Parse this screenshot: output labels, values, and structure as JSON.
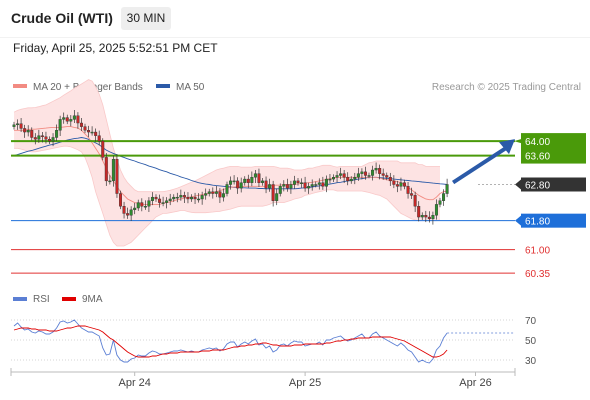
{
  "header": {
    "instrument": "Crude Oil (WTI)",
    "interval": "30 MIN",
    "datetime": "Friday, April 25, 2025 5:52:51 PM CET"
  },
  "legend": {
    "items": [
      {
        "label": "MA 20 + Bollinger Bands",
        "color": "#f28b82"
      },
      {
        "label": "MA 50",
        "color": "#2b5aa8"
      }
    ],
    "credit": "Research © 2025 Trading Central"
  },
  "rsi_legend": {
    "items": [
      {
        "label": "RSI",
        "color": "#5b7fd4"
      },
      {
        "label": "9MA",
        "color": "#e00000"
      }
    ]
  },
  "chart_data": {
    "type": "candlestick",
    "price_ylim": [
      59.8,
      65.8
    ],
    "x_ticks": [
      {
        "label": "Apr 24",
        "index": 34
      },
      {
        "label": "Apr 25",
        "index": 82
      },
      {
        "label": "Apr 26",
        "index": 130
      }
    ],
    "levels": [
      {
        "label": "64.00",
        "value": 64.0,
        "color": "#4a9a0a",
        "kind": "resistance"
      },
      {
        "label": "63.60",
        "value": 63.6,
        "color": "#4a9a0a",
        "kind": "resistance"
      },
      {
        "label": "62.80",
        "value": 62.8,
        "color": "#333333",
        "kind": "current"
      },
      {
        "label": "61.80",
        "value": 61.8,
        "color": "#1e6fd9",
        "kind": "pivot"
      },
      {
        "label": "61.00",
        "value": 61.0,
        "color": "#e03030",
        "kind": "support"
      },
      {
        "label": "60.35",
        "value": 60.35,
        "color": "#e03030",
        "kind": "support"
      }
    ],
    "close": [
      64.45,
      64.48,
      64.35,
      64.25,
      64.3,
      64.1,
      64.05,
      64.15,
      64.12,
      64.05,
      64.0,
      64.1,
      64.3,
      64.6,
      64.65,
      64.55,
      64.6,
      64.7,
      64.5,
      64.4,
      64.3,
      64.25,
      64.25,
      64.15,
      64.0,
      63.55,
      62.9,
      62.9,
      63.5,
      62.55,
      62.2,
      62.0,
      61.95,
      62.1,
      62.15,
      62.3,
      62.2,
      62.2,
      62.35,
      62.45,
      62.4,
      62.3,
      62.3,
      62.35,
      62.4,
      62.45,
      62.45,
      62.5,
      62.45,
      62.4,
      62.45,
      62.4,
      62.4,
      62.5,
      62.55,
      62.6,
      62.55,
      62.6,
      62.45,
      62.55,
      62.8,
      62.9,
      62.9,
      62.7,
      62.85,
      62.95,
      62.85,
      63.0,
      63.1,
      62.85,
      62.9,
      62.7,
      62.8,
      62.35,
      62.55,
      62.75,
      62.8,
      62.7,
      62.8,
      62.9,
      62.85,
      62.85,
      62.7,
      62.75,
      62.8,
      62.8,
      62.85,
      62.75,
      62.95,
      62.95,
      63.0,
      63.05,
      63.1,
      63.0,
      62.9,
      62.95,
      63.0,
      63.1,
      63.15,
      63.05,
      63.05,
      63.2,
      63.25,
      63.1,
      63.05,
      63.0,
      62.9,
      62.8,
      62.75,
      62.85,
      62.75,
      62.55,
      62.5,
      62.2,
      61.9,
      61.95,
      61.9,
      61.85,
      61.95,
      62.25,
      62.35,
      62.55,
      62.8
    ],
    "bollinger": {
      "upper": [
        64.8,
        64.85,
        64.88,
        64.9,
        64.92,
        64.92,
        64.93,
        64.95,
        64.98,
        65.0,
        65.05,
        65.1,
        65.15,
        65.2,
        65.27,
        65.33,
        65.39,
        65.46,
        65.52,
        65.58,
        65.64,
        65.7,
        65.66,
        65.5,
        65.3,
        65.0,
        64.6,
        64.2,
        63.8,
        63.5,
        63.2,
        63.0,
        62.85,
        62.75,
        62.65,
        62.6,
        62.6,
        62.6,
        62.6,
        62.6,
        62.6,
        62.6,
        62.6,
        62.62,
        62.64,
        62.67,
        62.7,
        62.74,
        62.78,
        62.82,
        62.86,
        62.9,
        62.95,
        63.0,
        63.05,
        63.1,
        63.15,
        63.2,
        63.23,
        63.25,
        63.28,
        63.3,
        63.3,
        63.3,
        63.28,
        63.28,
        63.28,
        63.28,
        63.3,
        63.3,
        63.3,
        63.3,
        63.3,
        63.3,
        63.28,
        63.25,
        63.25,
        63.25,
        63.23,
        63.2,
        63.2,
        63.2,
        63.22,
        63.25,
        63.25,
        63.28,
        63.3,
        63.33,
        63.33,
        63.33,
        63.3,
        63.28,
        63.3,
        63.3,
        63.3,
        63.3,
        63.3,
        63.3,
        63.3,
        63.35,
        63.4,
        63.42,
        63.45,
        63.45,
        63.45,
        63.45,
        63.45,
        63.45,
        63.45,
        63.4,
        63.4,
        63.4,
        63.4,
        63.4,
        63.35,
        63.35,
        63.3,
        63.3,
        63.3,
        63.3,
        63.3
      ],
      "lower": [
        63.8,
        63.8,
        63.78,
        63.75,
        63.72,
        63.7,
        63.7,
        63.72,
        63.74,
        63.76,
        63.78,
        63.8,
        63.82,
        63.84,
        63.86,
        63.86,
        63.84,
        63.8,
        63.76,
        63.7,
        63.55,
        63.3,
        63.0,
        62.6,
        62.3,
        62.0,
        61.7,
        61.4,
        61.2,
        61.1,
        61.1,
        61.1,
        61.15,
        61.2,
        61.3,
        61.4,
        61.5,
        61.6,
        61.7,
        61.8,
        61.9,
        61.95,
        62.0,
        62.0,
        62.02,
        62.04,
        62.06,
        62.08,
        62.08,
        62.05,
        62.03,
        62.02,
        62.02,
        62.02,
        62.02,
        62.03,
        62.04,
        62.05,
        62.06,
        62.08,
        62.1,
        62.12,
        62.15,
        62.18,
        62.2,
        62.2,
        62.2,
        62.2,
        62.2,
        62.2,
        62.2,
        62.22,
        62.25,
        62.3,
        62.3,
        62.3,
        62.3,
        62.33,
        62.36,
        62.4,
        62.42,
        62.45,
        62.5,
        62.52,
        62.55,
        62.58,
        62.6,
        62.62,
        62.65,
        62.65,
        62.65,
        62.62,
        62.62,
        62.62,
        62.62,
        62.62,
        62.62,
        62.62,
        62.62,
        62.6,
        62.58,
        62.55,
        62.52,
        62.5,
        62.45,
        62.4,
        62.3,
        62.2,
        62.1,
        62.0,
        61.95,
        61.9,
        61.85,
        61.82,
        61.8,
        61.8,
        61.8,
        61.8,
        61.8,
        61.8,
        61.82
      ]
    },
    "ma20": [
      64.3,
      64.3,
      64.3,
      64.3,
      64.32,
      64.33,
      64.33,
      64.34,
      64.35,
      64.36,
      64.37,
      64.38,
      64.38,
      64.38,
      64.39,
      64.4,
      64.4,
      64.38,
      64.36,
      64.3,
      64.2,
      64.1,
      63.95,
      63.8,
      63.65,
      63.45,
      63.25,
      63.05,
      62.9,
      62.75,
      62.6,
      62.5,
      62.4,
      62.35,
      62.3,
      62.28,
      62.25,
      62.25,
      62.25,
      62.25,
      62.25,
      62.25,
      62.28,
      62.3,
      62.32,
      62.35,
      62.38,
      62.4,
      62.42,
      62.44,
      62.46,
      62.48,
      62.5,
      62.52,
      62.54,
      62.56,
      62.58,
      62.6,
      62.63,
      62.66,
      62.7,
      62.72,
      62.73,
      62.74,
      62.74,
      62.75,
      62.75,
      62.75,
      62.75,
      62.75,
      62.75,
      62.75,
      62.77,
      62.78,
      62.78,
      62.78,
      62.8,
      62.8,
      62.8,
      62.8,
      62.82,
      62.83,
      62.84,
      62.85,
      62.86,
      62.88,
      62.9,
      62.92,
      62.94,
      62.96,
      62.98,
      63.0,
      63.0,
      63.0,
      63.0,
      63.0,
      63.0,
      63.0,
      63.0,
      63.0,
      63.0,
      63.0,
      63.0,
      62.98,
      62.95,
      62.93,
      62.92,
      62.9,
      62.88,
      62.85,
      62.8,
      62.72,
      62.65,
      62.58,
      62.5,
      62.45,
      62.4,
      62.38,
      62.38,
      62.45,
      62.55,
      62.6,
      62.62
    ],
    "ma50": [
      63.6,
      63.63,
      63.66,
      63.69,
      63.72,
      63.74,
      63.77,
      63.8,
      63.83,
      63.86,
      63.89,
      63.91,
      63.94,
      63.97,
      64.0,
      64.03,
      64.05,
      64.07,
      64.08,
      64.1,
      64.08,
      64.05,
      64.0,
      63.95,
      63.9,
      63.82,
      63.75,
      63.7,
      63.66,
      63.62,
      63.58,
      63.55,
      63.51,
      63.48,
      63.45,
      63.41,
      63.38,
      63.35,
      63.31,
      63.28,
      63.25,
      63.21,
      63.18,
      63.15,
      63.11,
      63.08,
      63.05,
      63.01,
      62.98,
      62.95,
      62.91,
      62.88,
      62.85,
      62.83,
      62.81,
      62.8,
      62.78,
      62.77,
      62.76,
      62.75,
      62.74,
      62.73,
      62.72,
      62.72,
      62.71,
      62.71,
      62.7,
      62.7,
      62.7,
      62.69,
      62.69,
      62.68,
      62.68,
      62.68,
      62.68,
      62.68,
      62.68,
      62.68,
      62.68,
      62.68,
      62.69,
      62.7,
      62.71,
      62.72,
      62.73,
      62.75,
      62.76,
      62.78,
      62.8,
      62.81,
      62.83,
      62.85,
      62.86,
      62.88,
      62.9,
      62.91,
      62.93,
      62.95,
      62.96,
      62.98,
      63.0,
      63.0,
      63.0,
      62.99,
      62.98,
      62.97,
      62.96,
      62.95,
      62.94,
      62.93,
      62.92,
      62.91,
      62.9,
      62.89,
      62.88,
      62.87,
      62.86,
      62.85,
      62.84,
      62.83,
      62.82,
      62.81,
      62.8
    ],
    "rsi_ylim": [
      20,
      80
    ],
    "rsi_levels": [
      {
        "label": "70",
        "value": 70
      },
      {
        "label": "50",
        "value": 50
      },
      {
        "label": "30",
        "value": 30
      }
    ],
    "rsi": [
      64,
      67,
      63,
      60,
      61,
      58,
      57,
      59,
      58,
      56,
      56,
      58,
      62,
      68,
      69,
      67,
      68,
      70,
      66,
      62,
      60,
      58,
      58,
      56,
      54,
      42,
      35,
      36,
      50,
      35,
      30,
      28,
      28,
      31,
      32,
      35,
      34,
      34,
      37,
      39,
      38,
      36,
      36,
      37,
      38,
      39,
      39,
      40,
      39,
      38,
      39,
      38,
      38,
      40,
      41,
      42,
      41,
      42,
      39,
      41,
      46,
      48,
      48,
      43,
      46,
      48,
      46,
      49,
      51,
      45,
      46,
      42,
      44,
      38,
      40,
      45,
      46,
      44,
      47,
      49,
      48,
      48,
      44,
      45,
      46,
      46,
      48,
      45,
      50,
      50,
      52,
      53,
      54,
      51,
      49,
      50,
      52,
      54,
      56,
      52,
      52,
      56,
      58,
      54,
      52,
      50,
      48,
      46,
      44,
      47,
      44,
      40,
      38,
      33,
      28,
      30,
      28,
      27,
      31,
      40,
      44,
      52,
      57
    ],
    "rsi_9ma": [
      60,
      61,
      62,
      62,
      62,
      61,
      61,
      60,
      60,
      60,
      59,
      59,
      59,
      60,
      61,
      62,
      62,
      63,
      64,
      64,
      64,
      63,
      62,
      61,
      60,
      58,
      55,
      52,
      50,
      47,
      44,
      41,
      38,
      36,
      34,
      33,
      33,
      33,
      33,
      34,
      34,
      35,
      36,
      36,
      37,
      37,
      37,
      38,
      38,
      38,
      38,
      38,
      38,
      39,
      39,
      39,
      40,
      40,
      40,
      40,
      41,
      42,
      43,
      43,
      44,
      44,
      45,
      45,
      46,
      46,
      47,
      47,
      46,
      45,
      45,
      44,
      44,
      44,
      44,
      45,
      45,
      45,
      46,
      46,
      46,
      46,
      46,
      46,
      47,
      47,
      48,
      49,
      49,
      50,
      50,
      51,
      51,
      52,
      52,
      52,
      52,
      53,
      53,
      53,
      53,
      53,
      53,
      52,
      51,
      50,
      49,
      47,
      45,
      43,
      41,
      39,
      37,
      35,
      33,
      33,
      34,
      36,
      40
    ]
  }
}
